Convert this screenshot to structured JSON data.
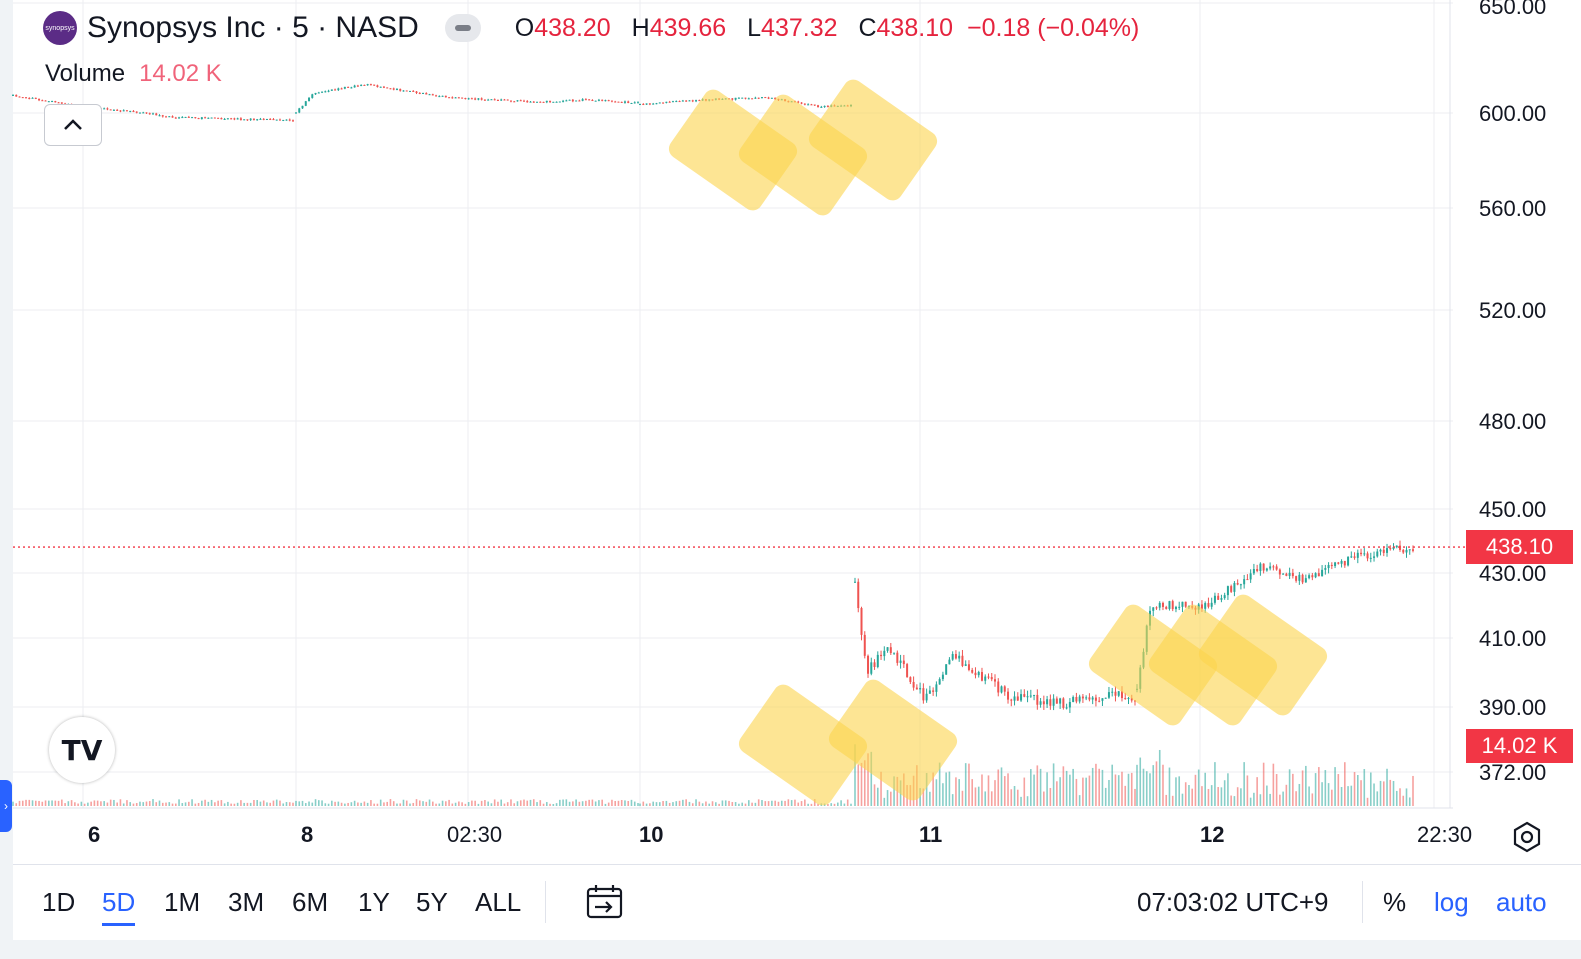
{
  "header": {
    "logo_text": "synopsys",
    "symbol_line": "Synopsys Inc · 5 · NASD",
    "ohlc": [
      {
        "key": "O",
        "value": "438.20"
      },
      {
        "key": "H",
        "value": "439.66"
      },
      {
        "key": "L",
        "value": "437.32"
      },
      {
        "key": "C",
        "value": "438.10"
      }
    ],
    "change": "−0.18 (−0.04%)",
    "volume_label": "Volume",
    "volume_value": "14.02 K"
  },
  "colors": {
    "up": "#26a69a",
    "down": "#ef5350",
    "price_tag": "#f23645",
    "active": "#2962ff",
    "grid": "#eceef2"
  },
  "icons": {
    "collapse": "chevron-up-icon",
    "logo": "tradingview-logo",
    "settings": "gear-icon",
    "calendar": "go-to-date-icon",
    "side_tab": "chevron-right-icon"
  },
  "last_price_tag": "438.10",
  "volume_tag": "14.02 K",
  "chart_data": {
    "type": "candlestick",
    "title": "Synopsys Inc · 5 · NASD",
    "interval": "5",
    "scale": "log",
    "y_ticks": [
      "650.00",
      "600.00",
      "560.00",
      "520.00",
      "480.00",
      "450.00",
      "430.00",
      "410.00",
      "390.00",
      "372.00"
    ],
    "x_ticks": [
      {
        "label": "6",
        "bold": true
      },
      {
        "label": "8",
        "bold": true
      },
      {
        "label": "02:30",
        "bold": false
      },
      {
        "label": "10",
        "bold": true
      },
      {
        "label": "11",
        "bold": true
      },
      {
        "label": "12",
        "bold": true
      },
      {
        "label": "22:30",
        "bold": false
      }
    ],
    "ylim": [
      365,
      652
    ],
    "last_close": 438.1,
    "grid": true,
    "segments": [
      {
        "day": "6",
        "start": 608.0,
        "end": 597.0
      },
      {
        "day": "8",
        "start": 600.0,
        "end": 604.5
      },
      {
        "day": "10",
        "start": 604.0,
        "end": 603.5
      },
      {
        "day": "11",
        "start": 408.0,
        "end": 393.0
      },
      {
        "day": "12",
        "start": 395.0,
        "end": 438.1
      }
    ],
    "close_path": [
      {
        "t": "6",
        "close": 608.0
      },
      {
        "t": "6",
        "close": 599.0
      },
      {
        "t": "6",
        "close": 597.0
      },
      {
        "t": "8",
        "close": 604.0
      },
      {
        "t": "8",
        "close": 611.0
      },
      {
        "t": "02:30",
        "close": 606.0
      },
      {
        "t": "02:30",
        "close": 605.0
      },
      {
        "t": "10",
        "close": 606.0
      },
      {
        "t": "10",
        "close": 603.5
      },
      {
        "t": "11",
        "close": 427.0
      },
      {
        "t": "11",
        "close": 405.0
      },
      {
        "t": "11",
        "close": 392.0
      },
      {
        "t": "11",
        "close": 394.0
      },
      {
        "t": "11",
        "close": 388.0
      },
      {
        "t": "12",
        "close": 405.0
      },
      {
        "t": "12",
        "close": 420.0
      },
      {
        "t": "12",
        "close": 432.0
      },
      {
        "t": "12",
        "close": 428.0
      },
      {
        "t": "22:30",
        "close": 438.1
      }
    ]
  },
  "bottom": {
    "ranges": [
      "1D",
      "5D",
      "1M",
      "3M",
      "6M",
      "1Y",
      "5Y",
      "ALL"
    ],
    "active_range": "5D",
    "clock": "07:03:02 UTC+9",
    "percent": "%",
    "log": "log",
    "auto": "auto"
  }
}
